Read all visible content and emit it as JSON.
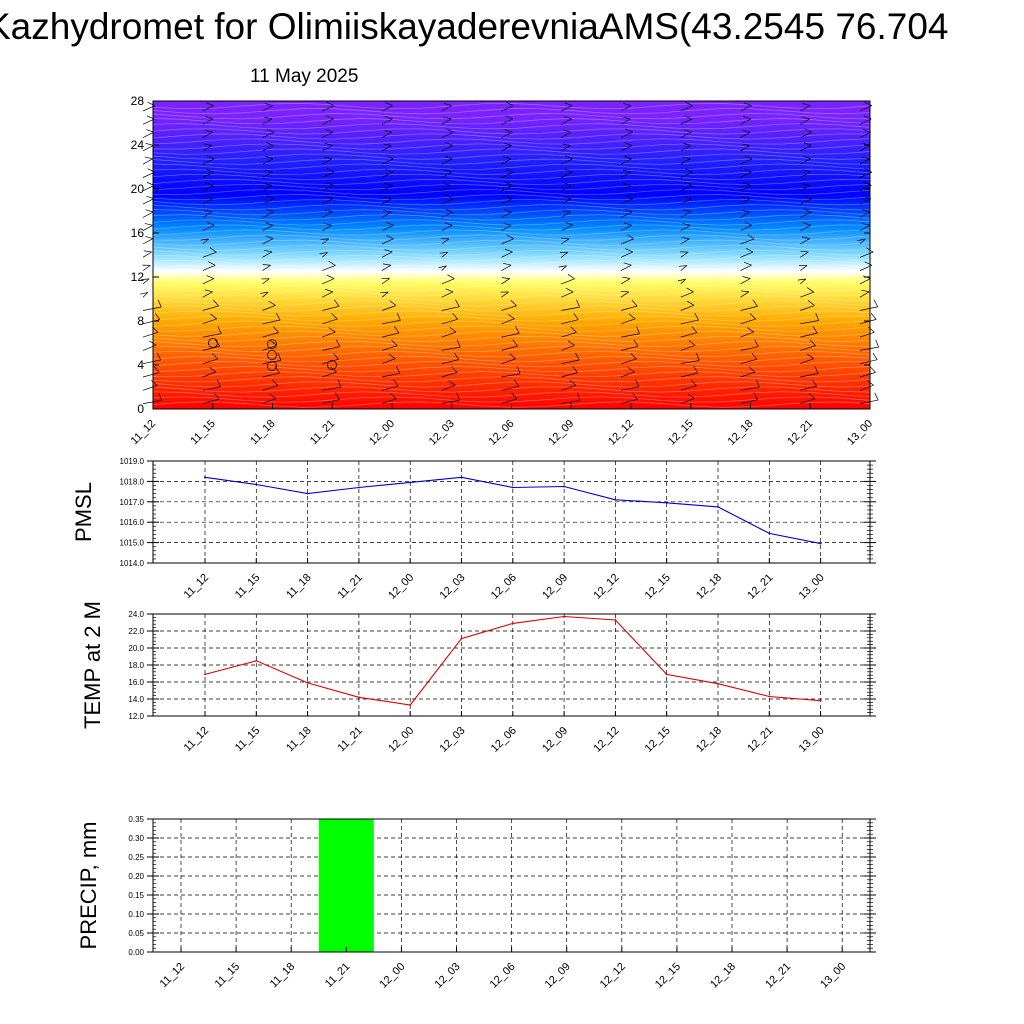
{
  "title": "Kazhydromet for OlimiiskayaderevniaAMS(43.2545 76.704",
  "date": "11 May 2025",
  "time_labels": [
    "11_12",
    "11_15",
    "11_18",
    "11_21",
    "12_00",
    "12_03",
    "12_06",
    "12_09",
    "12_12",
    "12_15",
    "12_18",
    "12_21",
    "13_00"
  ],
  "chart_data": [
    {
      "type": "heatmap",
      "name": "vertical-cross-section",
      "ylim": [
        0,
        28
      ],
      "yticks": [
        "0",
        "4",
        "8",
        "12",
        "16",
        "20",
        "24",
        "28"
      ],
      "x": [
        "11_12",
        "11_15",
        "11_18",
        "11_21",
        "12_00",
        "12_03",
        "12_06",
        "12_09",
        "12_12",
        "12_15",
        "12_18",
        "12_21",
        "13_00"
      ],
      "colors": [
        "#ff0000",
        "#ff6600",
        "#ffaa00",
        "#ffff66",
        "#ffffff",
        "#88ddff",
        "#0088ff",
        "#0000ff",
        "#2020ff",
        "#7a22ff"
      ],
      "color_stops_y": [
        0,
        5,
        8,
        11.5,
        12.5,
        14,
        16.5,
        19.5,
        22.5,
        26.5
      ],
      "wind_barbs": true,
      "grid": false
    },
    {
      "type": "line",
      "ylabel": "PMSL",
      "ylim": [
        1014,
        1019
      ],
      "yticks": [
        "1014.0",
        "1015.0",
        "1016.0",
        "1017.0",
        "1018.0",
        "1019.0"
      ],
      "x": [
        "11_12",
        "11_15",
        "11_18",
        "11_21",
        "12_00",
        "12_03",
        "12_06",
        "12_09",
        "12_12",
        "12_15",
        "12_18",
        "12_21",
        "13_00"
      ],
      "values": [
        1018.2,
        1017.85,
        1017.4,
        1017.7,
        1017.95,
        1018.2,
        1017.7,
        1017.75,
        1017.1,
        1016.95,
        1016.75,
        1015.45,
        1014.95
      ],
      "color": "#0000cc",
      "grid": true
    },
    {
      "type": "line",
      "ylabel": "TEMP at 2 M",
      "ylim": [
        12,
        24
      ],
      "yticks": [
        "12.0",
        "14.0",
        "16.0",
        "18.0",
        "20.0",
        "22.0",
        "24.0"
      ],
      "x": [
        "11_12",
        "11_15",
        "11_18",
        "11_21",
        "12_00",
        "12_03",
        "12_06",
        "12_09",
        "12_12",
        "12_15",
        "12_18",
        "12_21",
        "13_00"
      ],
      "values": [
        16.9,
        18.5,
        15.9,
        14.2,
        13.3,
        21.1,
        22.9,
        23.7,
        23.3,
        16.9,
        15.8,
        14.3,
        13.8
      ],
      "color": "#dd0000",
      "grid": true
    },
    {
      "type": "bar",
      "ylabel": "PRECIP, mm",
      "ylim": [
        0,
        0.35
      ],
      "yticks": [
        "0.00",
        "0.05",
        "0.10",
        "0.15",
        "0.20",
        "0.25",
        "0.30",
        "0.35"
      ],
      "x": [
        "11_12",
        "11_15",
        "11_18",
        "11_21",
        "12_00",
        "12_03",
        "12_06",
        "12_09",
        "12_12",
        "12_15",
        "12_18",
        "12_21",
        "13_00"
      ],
      "values": [
        0,
        0,
        0,
        0.35,
        0,
        0,
        0,
        0,
        0,
        0,
        0,
        0,
        0
      ],
      "color": "#00ff00",
      "grid": true
    }
  ]
}
